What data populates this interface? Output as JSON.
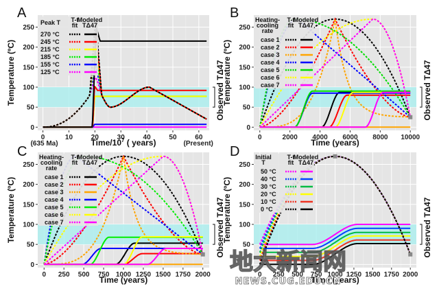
{
  "watermark": {
    "main": "地大新闻网",
    "sub": "NEWS.CUG.EDU.CN"
  },
  "chart_data": [
    {
      "panel": "A",
      "type": "line",
      "xlabel": "Time/10^7 (years)",
      "xlabel_main": "Time/10",
      "xlabel_sup": "7",
      "xlabel_tail": " ( years)",
      "ylabel": "Temperature (ºC)",
      "right_label": "Observed TΔ47",
      "xlim": [
        -2,
        64
      ],
      "ylim": [
        -8,
        280
      ],
      "xticks": [
        0,
        10,
        20,
        30,
        40,
        50,
        60
      ],
      "yticks": [
        0,
        50,
        100,
        150,
        200,
        250
      ],
      "x_annotations": [
        {
          "x": 0,
          "text": "(635 Ma)"
        },
        {
          "x": 63,
          "text": "(Present)"
        }
      ],
      "observed_band": [
        50,
        100
      ],
      "legend": {
        "title1": "Peak T",
        "title2": "T-t fit",
        "title3": "Modeled TΔ47"
      },
      "series": [
        {
          "name": "270 °C",
          "color": "#000000",
          "peak": 270,
          "modeled_final": 215
        },
        {
          "name": "245 °C",
          "color": "#ff0000",
          "peak": 245,
          "modeled_final": 92
        },
        {
          "name": "215 °C",
          "color": "#ffff00",
          "peak": 215,
          "modeled_final": 77
        },
        {
          "name": "185 °C",
          "color": "#00ee00",
          "peak": 185,
          "modeled_final": 77
        },
        {
          "name": "155 °C",
          "color": "#0000ff",
          "peak": 155,
          "modeled_final": 7
        },
        {
          "name": "125 °C",
          "color": "#ff00ff",
          "peak": 125,
          "modeled_final": 0
        }
      ]
    },
    {
      "panel": "B",
      "type": "line",
      "xlabel": "Time (years)",
      "ylabel": "Temperature (ºC)",
      "right_label": "Observed TΔ47",
      "xlim": [
        -400,
        10400
      ],
      "ylim": [
        -8,
        280
      ],
      "xticks": [
        0,
        2000,
        4000,
        6000,
        8000,
        10000
      ],
      "yticks": [
        0,
        50,
        100,
        150,
        200,
        250
      ],
      "observed_band": [
        50,
        100
      ],
      "legend": {
        "title1": "Heating-cooling rate",
        "title2": "T-t fit",
        "title3": "Modeled TΔ47"
      },
      "series": [
        {
          "name": "case 1",
          "color": "#000000",
          "peak_t": 5000,
          "shape": "parabola",
          "modeled_final": 87,
          "rise_t": 4100
        },
        {
          "name": "case 2",
          "color": "#ff0000",
          "peak_t": 5000,
          "shape": "sharp",
          "modeled_final": 80,
          "rise_t": 4600
        },
        {
          "name": "case 3",
          "color": "#ffa500",
          "peak_t": 5000,
          "shape": "spike",
          "modeled_final": 0,
          "rise_t": null
        },
        {
          "name": "case 4",
          "color": "#0000ff",
          "peak_t": 2500,
          "shape": "early",
          "modeled_final": 85,
          "rise_t": 2300
        },
        {
          "name": "case 5",
          "color": "#00dd00",
          "peak_t": 2300,
          "shape": "flat_early",
          "modeled_final": 90,
          "rise_t": 2300
        },
        {
          "name": "case 6",
          "color": "#ffff00",
          "peak_t": 7500,
          "shape": "flat_late",
          "modeled_final": 87,
          "rise_t": 5000
        },
        {
          "name": "case 7",
          "color": "#ff00ff",
          "peak_t": 7500,
          "shape": "late",
          "modeled_final": 87,
          "rise_t": 7000
        }
      ]
    },
    {
      "panel": "C",
      "type": "line",
      "xlabel": "Time (years)",
      "ylabel": "Temperature (ºC)",
      "right_label": "Observed TΔ47",
      "xlim": [
        -80,
        2080
      ],
      "ylim": [
        -8,
        280
      ],
      "xticks": [
        0,
        250,
        500,
        750,
        1000,
        1250,
        1500,
        1750,
        2000
      ],
      "yticks": [
        0,
        50,
        100,
        150,
        200,
        250
      ],
      "observed_band": [
        50,
        100
      ],
      "legend": {
        "title1": "Heating-cooling rate",
        "title2": "T-t fit",
        "title3": "Modeled TΔ47"
      },
      "series": [
        {
          "name": "case 1",
          "color": "#000000",
          "peak_t": 1000,
          "shape": "parabola",
          "modeled_final": 53,
          "rise_t": 900
        },
        {
          "name": "case 2",
          "color": "#ff0000",
          "peak_t": 1000,
          "shape": "sharp",
          "modeled_final": 27,
          "rise_t": 1000
        },
        {
          "name": "case 3",
          "color": "#ffa500",
          "peak_t": 1000,
          "shape": "spike",
          "modeled_final": 0,
          "rise_t": null
        },
        {
          "name": "case 4",
          "color": "#0000ff",
          "peak_t": 400,
          "shape": "early",
          "modeled_final": 40,
          "rise_t": 480
        },
        {
          "name": "case 5",
          "color": "#00ee00",
          "peak_t": 500,
          "shape": "flat_early",
          "modeled_final": 68,
          "rise_t": 580
        },
        {
          "name": "case 6",
          "color": "#ffff00",
          "peak_t": 1500,
          "shape": "flat_late",
          "modeled_final": 69,
          "rise_t": 1000
        },
        {
          "name": "case 7",
          "color": "#ff00ff",
          "peak_t": 1500,
          "shape": "late",
          "modeled_final": 40,
          "rise_t": 1300
        }
      ]
    },
    {
      "panel": "D",
      "type": "line",
      "xlabel": "Time (years)",
      "ylabel": "Temperature (ºC)",
      "right_label": "Observed TΔ47",
      "xlim": [
        -80,
        2080
      ],
      "ylim": [
        -8,
        280
      ],
      "xticks": [
        0,
        250,
        500,
        750,
        1000,
        1250,
        1500,
        1750,
        2000
      ],
      "yticks": [
        50,
        100,
        150,
        200,
        250
      ],
      "observed_band": [
        50,
        100
      ],
      "legend": {
        "title1": "Initial T",
        "title2": "T-t fit",
        "title3": "Modeled TΔ47"
      },
      "series": [
        {
          "name": "50 °C",
          "color": "#ff00ff",
          "initial": 50,
          "modeled_final": 100
        },
        {
          "name": "40 °C",
          "color": "#0044ff",
          "initial": 40,
          "modeled_final": 90
        },
        {
          "name": "30 °C",
          "color": "#00bb44",
          "initial": 30,
          "modeled_final": 80
        },
        {
          "name": "20 °C",
          "color": "#ffff00",
          "initial": 20,
          "modeled_final": 71
        },
        {
          "name": "10 °C",
          "color": "#ee3322",
          "initial": 10,
          "modeled_final": 61
        },
        {
          "name": "0 °C",
          "color": "#000000",
          "initial": 0,
          "modeled_final": 52
        }
      ]
    }
  ]
}
